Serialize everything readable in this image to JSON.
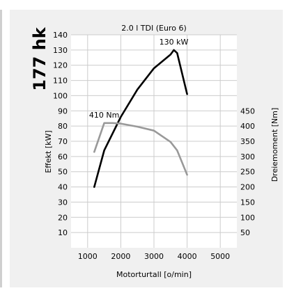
{
  "badge": {
    "power_label": "177 hk"
  },
  "chart_data": {
    "type": "line",
    "title": "2.0 l TDI (Euro 6)",
    "xlabel": "Motorturtall [o/min]",
    "ylabel_left": "Effekt [kW]",
    "ylabel_right": "Dreiemoment [Nm]",
    "x_ticks": [
      1000,
      2000,
      3000,
      4000,
      5000
    ],
    "y_left_ticks": [
      10,
      20,
      30,
      40,
      50,
      60,
      70,
      80,
      90,
      100,
      110,
      120,
      130,
      140
    ],
    "y_right_ticks": [
      50,
      100,
      150,
      200,
      250,
      300,
      350,
      400,
      450
    ],
    "xlim": [
      500,
      5500
    ],
    "ylim_left": [
      0,
      140
    ],
    "ylim_right": [
      0,
      700
    ],
    "grid": true,
    "series": [
      {
        "name": "Effekt",
        "axis": "left",
        "color": "#000000",
        "x": [
          1200,
          1500,
          2000,
          2500,
          3000,
          3500,
          3600,
          3700,
          4000
        ],
        "y": [
          40,
          64,
          86,
          104,
          118,
          127,
          130,
          128,
          101
        ]
      },
      {
        "name": "Dreiemoment",
        "axis": "right",
        "color": "#999999",
        "x": [
          1200,
          1500,
          1750,
          2000,
          2500,
          3000,
          3500,
          3700,
          4000
        ],
        "y": [
          315,
          410,
          410,
          408,
          398,
          385,
          348,
          320,
          240
        ]
      }
    ],
    "annotations": [
      {
        "text": "130 kW",
        "x": 3600,
        "y": 130,
        "axis": "left"
      },
      {
        "text": "410 Nm",
        "x": 1500,
        "y": 410,
        "axis": "right"
      }
    ]
  }
}
